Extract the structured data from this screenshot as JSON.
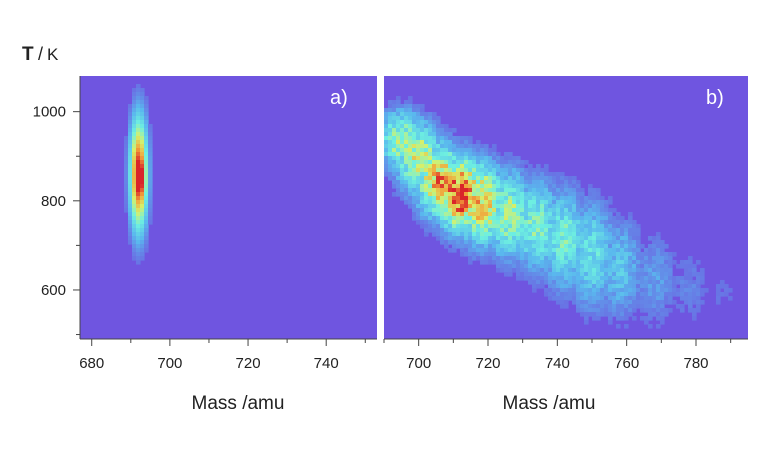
{
  "figure": {
    "y_axis_title": "T",
    "y_axis_unit": "K"
  },
  "chart_data": [
    {
      "type": "heatmap",
      "panel_label": "a)",
      "xlabel": "Mass /amu",
      "ylabel": "T /K",
      "xlim": [
        677,
        753
      ],
      "ylim": [
        490,
        1080
      ],
      "xticks": [
        680,
        700,
        720,
        740
      ],
      "yticks": [
        600,
        800,
        1000
      ],
      "background_color": "#6f55e0",
      "colormap": [
        "#6f55e0",
        "#5ab8ee",
        "#6ef0e0",
        "#d6f06a",
        "#f2a23a",
        "#d9242a"
      ],
      "blobs": [
        {
          "x": 692.0,
          "y": 860,
          "sx": 1.5,
          "sy": 85,
          "peak": 1.0
        },
        {
          "x": 692.5,
          "y": 850,
          "sx": 0.7,
          "sy": 25,
          "peak": 0.25
        }
      ]
    },
    {
      "type": "heatmap",
      "panel_label": "b)",
      "xlabel": "Mass /amu",
      "ylabel": "",
      "xlim": [
        690,
        795
      ],
      "ylim": [
        490,
        1080
      ],
      "xticks": [
        700,
        720,
        740,
        760,
        780
      ],
      "yticks": [],
      "background_color": "#6f55e0",
      "colormap": [
        "#6f55e0",
        "#5ab8ee",
        "#6ef0e0",
        "#d6f06a",
        "#f2a23a",
        "#d9242a"
      ],
      "ridge": [
        {
          "x": 695,
          "y": 935,
          "sy": 45,
          "peak": 0.55
        },
        {
          "x": 700,
          "y": 895,
          "sy": 55,
          "peak": 0.62
        },
        {
          "x": 706,
          "y": 845,
          "sy": 55,
          "peak": 0.8
        },
        {
          "x": 712,
          "y": 815,
          "sy": 55,
          "peak": 1.0
        },
        {
          "x": 718,
          "y": 795,
          "sy": 60,
          "peak": 0.78
        },
        {
          "x": 726,
          "y": 770,
          "sy": 65,
          "peak": 0.55
        },
        {
          "x": 734,
          "y": 745,
          "sy": 70,
          "peak": 0.46
        },
        {
          "x": 742,
          "y": 715,
          "sy": 75,
          "peak": 0.42
        },
        {
          "x": 750,
          "y": 680,
          "sy": 80,
          "peak": 0.36
        },
        {
          "x": 758,
          "y": 650,
          "sy": 75,
          "peak": 0.26
        },
        {
          "x": 768,
          "y": 625,
          "sy": 70,
          "peak": 0.16
        },
        {
          "x": 778,
          "y": 605,
          "sy": 60,
          "peak": 0.1
        },
        {
          "x": 788,
          "y": 590,
          "sy": 50,
          "peak": 0.06
        }
      ],
      "ridge_sx": 4.5
    }
  ]
}
